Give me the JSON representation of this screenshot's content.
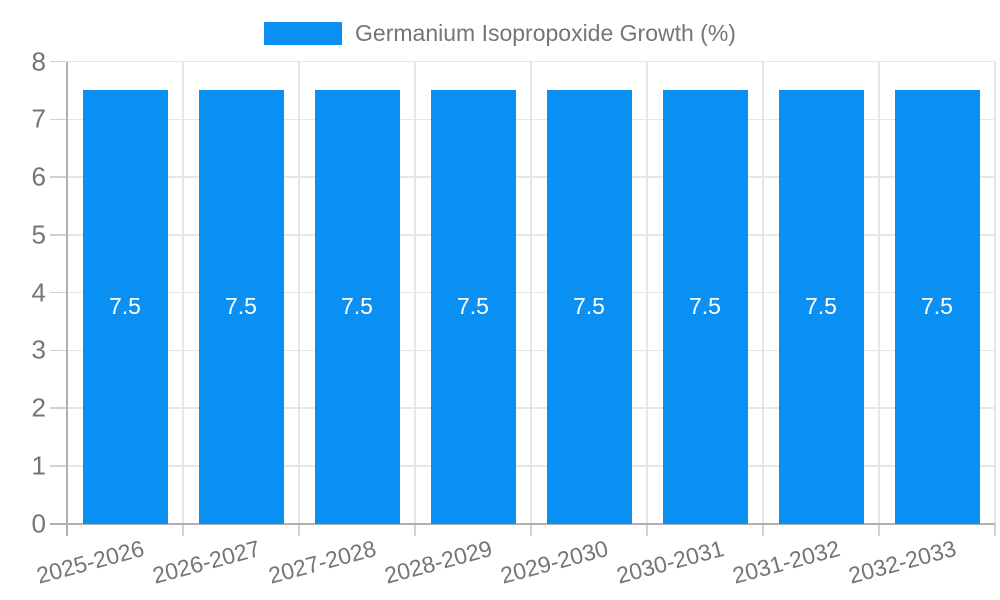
{
  "chart_data": {
    "type": "bar",
    "legend_label": "Germanium Isopropoxide Growth (%)",
    "legend_position": "top",
    "categories": [
      "2025-2026",
      "2026-2027",
      "2027-2028",
      "2028-2029",
      "2029-2030",
      "2030-2031",
      "2031-2032",
      "2032-2033"
    ],
    "values": [
      7.5,
      7.5,
      7.5,
      7.5,
      7.5,
      7.5,
      7.5,
      7.5
    ],
    "value_labels": [
      "7.5",
      "7.5",
      "7.5",
      "7.5",
      "7.5",
      "7.5",
      "7.5",
      "7.5"
    ],
    "xlabel": "",
    "ylabel": "",
    "ylim": [
      0,
      8
    ],
    "yticks": [
      0,
      1,
      2,
      3,
      4,
      5,
      6,
      7,
      8
    ],
    "grid": true,
    "x_label_rotation_deg": -15,
    "colors": {
      "bar": "#0a8ff2",
      "axis_text": "#757575",
      "bar_label_text": "#ffffff",
      "grid_line": "#e6e6e6",
      "tick_line": "#d0d0d0",
      "axis_line": "#b0b0b0"
    }
  }
}
